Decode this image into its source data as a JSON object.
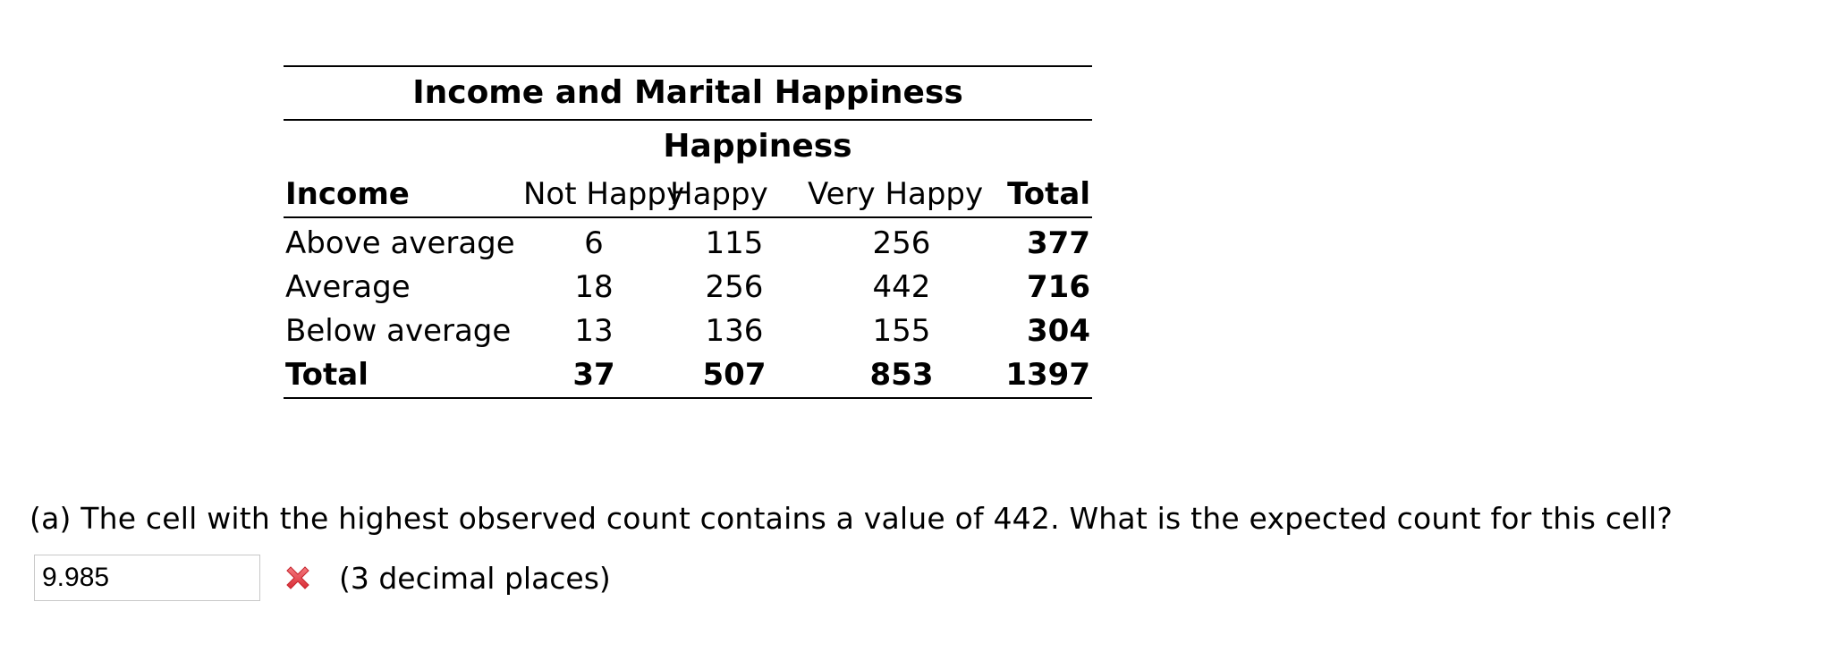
{
  "table": {
    "title": "Income and Marital Happiness",
    "group_header": "Happiness",
    "columns": [
      "Income",
      "Not Happy",
      "Happy",
      "Very Happy",
      "Total"
    ],
    "rows": [
      {
        "label": "Above average",
        "values": [
          "6",
          "115",
          "256"
        ],
        "total": "377"
      },
      {
        "label": "Average",
        "values": [
          "18",
          "256",
          "442"
        ],
        "total": "716"
      },
      {
        "label": "Below average",
        "values": [
          "13",
          "136",
          "155"
        ],
        "total": "304"
      }
    ],
    "total_row": {
      "label": "Total",
      "values": [
        "37",
        "507",
        "853"
      ],
      "total": "1397"
    }
  },
  "question": {
    "text": "(a) The cell with the highest observed count contains a value of 442. What is the expected count for this cell?",
    "answer_value": "9.985",
    "status_icon": "incorrect-x-icon",
    "status_color": "#e8434b",
    "hint": "(3 decimal places)"
  }
}
